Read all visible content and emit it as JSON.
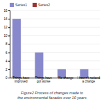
{
  "chart_data": {
    "type": "bar",
    "title": "Figure2  Process of changes made to\nthe environmental facades over 10 years",
    "categories": [
      "Things have\nimproved",
      "Things have\ngot worse",
      "No change",
      "I haven't noticed\na change"
    ],
    "series": [
      {
        "name": "Series1",
        "color": "#8888cc",
        "values": [
          14,
          6,
          2,
          2
        ]
      },
      {
        "name": "Series2",
        "color": "#993333",
        "values": [
          0,
          0,
          0,
          0
        ]
      }
    ],
    "ylim": [
      0,
      16
    ],
    "yticks": [
      0,
      2,
      4,
      6,
      8,
      10,
      12,
      14,
      16
    ],
    "grid": true,
    "legend": "top"
  }
}
